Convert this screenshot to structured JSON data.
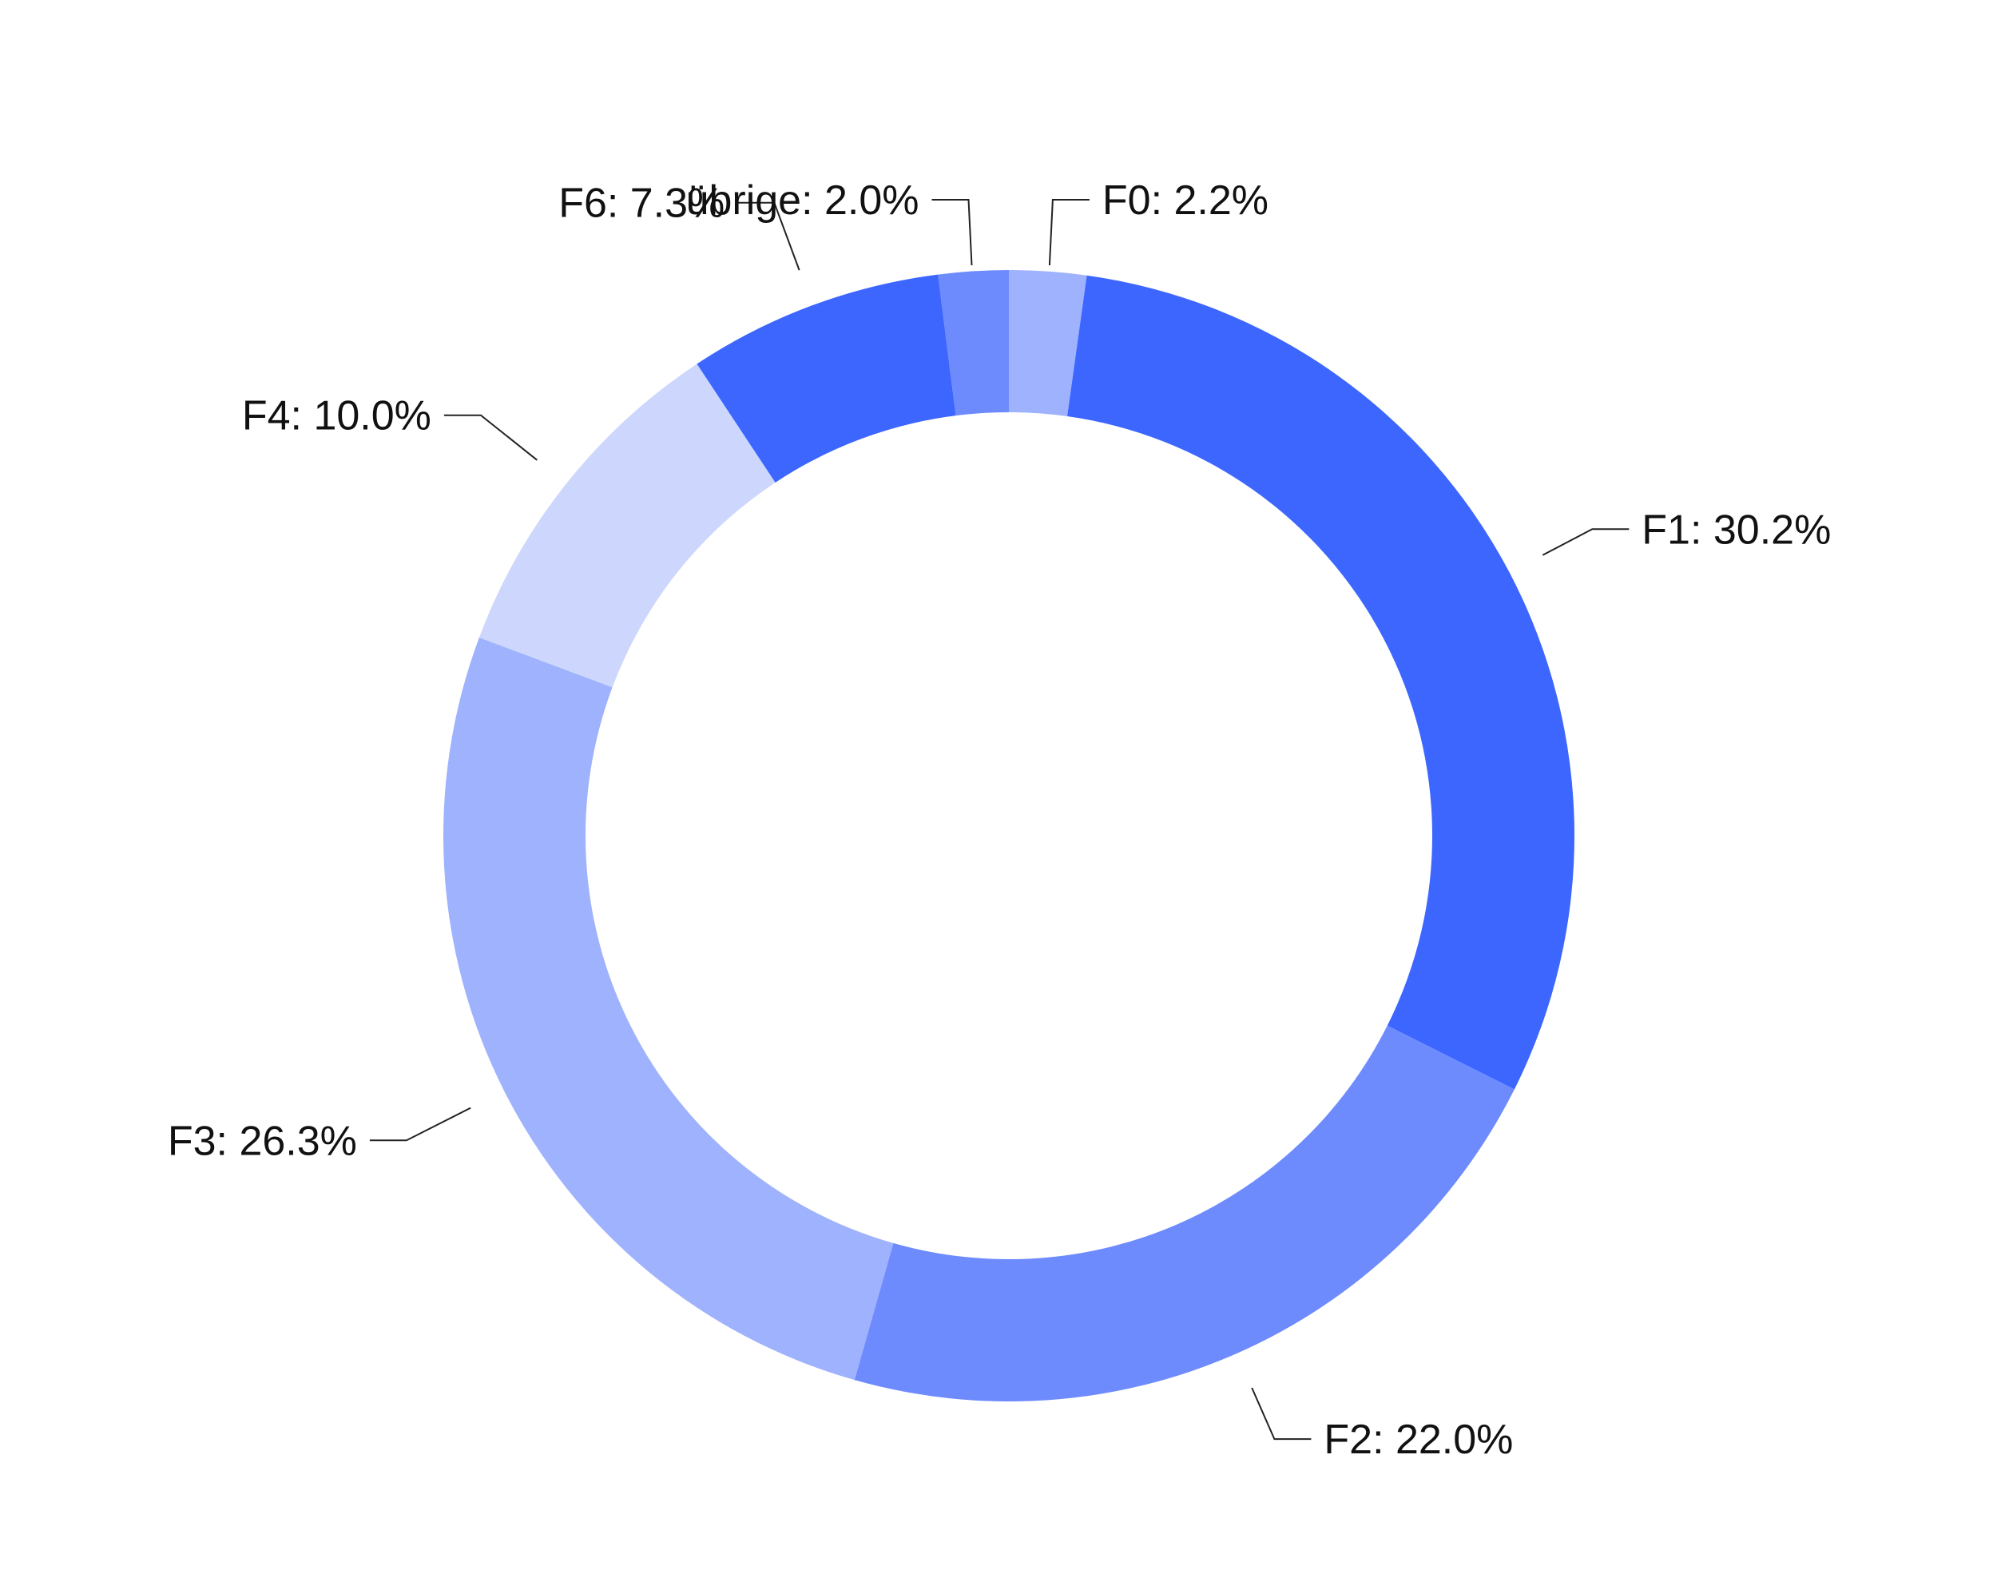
{
  "chart_data": {
    "type": "pie",
    "style": "donut",
    "slices": [
      {
        "label": "F0",
        "value": 2.2,
        "display": "F0: 2.2%",
        "color": "#9fb2fd"
      },
      {
        "label": "F1",
        "value": 30.2,
        "display": "F1: 30.2%",
        "color": "#3d66ff"
      },
      {
        "label": "F2",
        "value": 22.0,
        "display": "F2: 22.0%",
        "color": "#6e8bfe"
      },
      {
        "label": "F3",
        "value": 26.3,
        "display": "F3: 26.3%",
        "color": "#9fb2fd"
      },
      {
        "label": "F4",
        "value": 10.0,
        "display": "F4: 10.0%",
        "color": "#cdd7fd"
      },
      {
        "label": "F6",
        "value": 7.3,
        "display": "F6: 7.3%",
        "color": "#3d66ff"
      },
      {
        "label": "übrige",
        "value": 2.0,
        "display": "übrige: 2.0%",
        "color": "#6e8bfe"
      }
    ],
    "start_angle": "12 o'clock",
    "direction": "clockwise",
    "leader_line_color": "#222222"
  }
}
